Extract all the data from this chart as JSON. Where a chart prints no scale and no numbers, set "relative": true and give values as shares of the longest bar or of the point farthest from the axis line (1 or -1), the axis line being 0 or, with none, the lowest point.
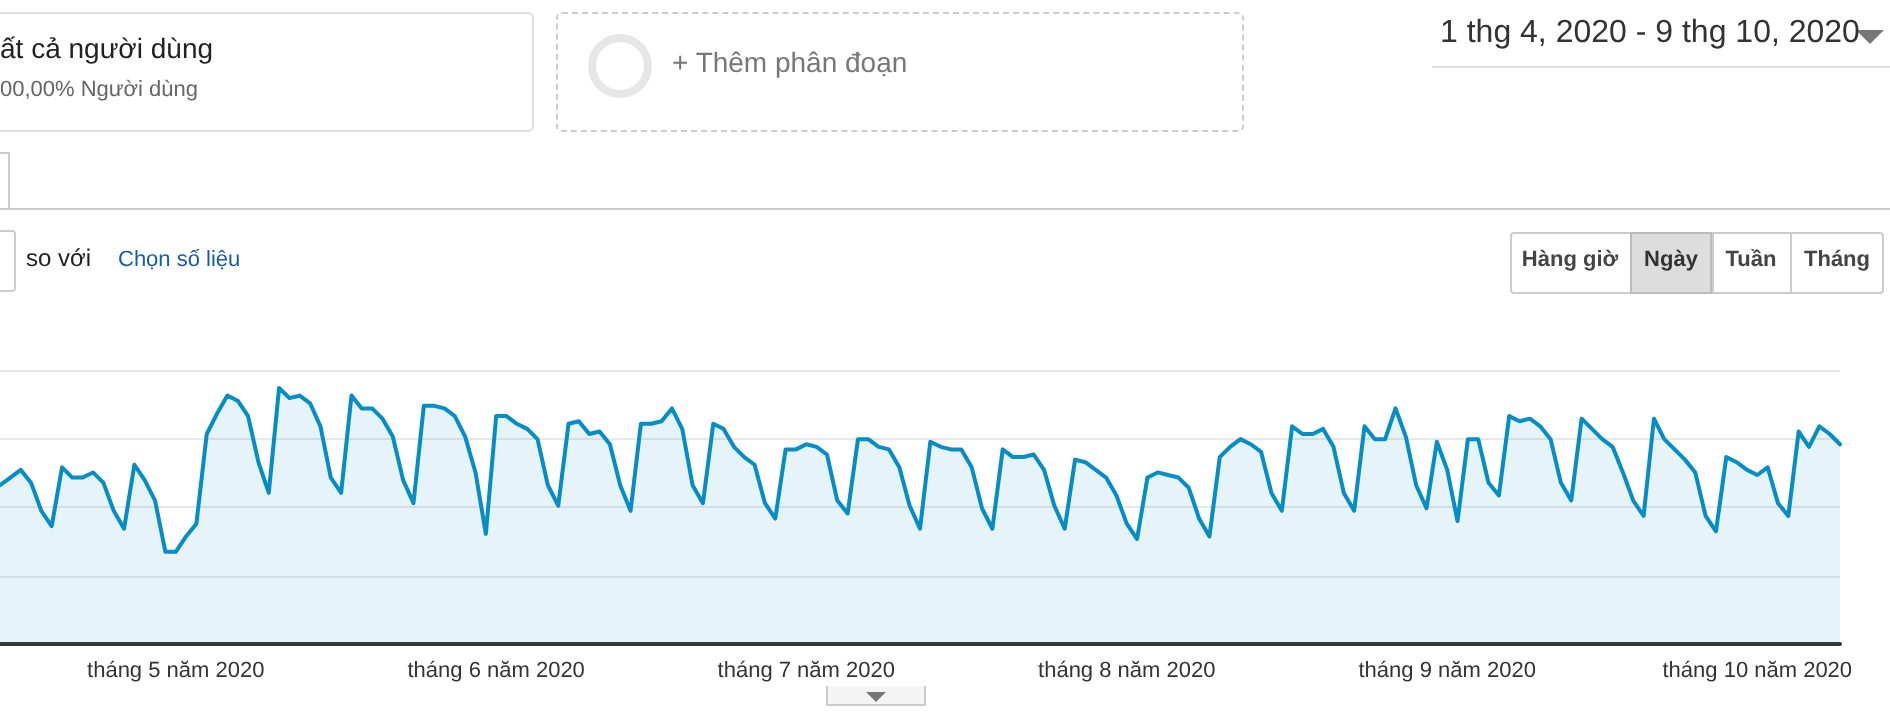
{
  "chart_data": {
    "type": "area",
    "relative": true,
    "color": "#058dc7",
    "marker": "none",
    "line_style": "solid",
    "grid": "y",
    "xlim": [
      "2020-04-14",
      "2020-10-09"
    ],
    "xticks": [
      {
        "value": "2020-05-01",
        "label": "tháng 5 năm 2020"
      },
      {
        "value": "2020-06-01",
        "label": "tháng 6 năm 2020"
      },
      {
        "value": "2020-07-01",
        "label": "tháng 7 năm 2020"
      },
      {
        "value": "2020-08-01",
        "label": "tháng 8 năm 2020"
      },
      {
        "value": "2020-09-01",
        "label": "tháng 9 năm 2020"
      },
      {
        "value": "2020-10-01",
        "label": "tháng 10 năm 2020"
      }
    ],
    "x": [
      "2020-04-14",
      "2020-04-15",
      "2020-04-16",
      "2020-04-17",
      "2020-04-18",
      "2020-04-19",
      "2020-04-20",
      "2020-04-21",
      "2020-04-22",
      "2020-04-23",
      "2020-04-24",
      "2020-04-25",
      "2020-04-26",
      "2020-04-27",
      "2020-04-28",
      "2020-04-29",
      "2020-04-30",
      "2020-05-01",
      "2020-05-02",
      "2020-05-03",
      "2020-05-04",
      "2020-05-05",
      "2020-05-06",
      "2020-05-07",
      "2020-05-08",
      "2020-05-09",
      "2020-05-10",
      "2020-05-11",
      "2020-05-12",
      "2020-05-13",
      "2020-05-14",
      "2020-05-15",
      "2020-05-16",
      "2020-05-17",
      "2020-05-18",
      "2020-05-19",
      "2020-05-20",
      "2020-05-21",
      "2020-05-22",
      "2020-05-23",
      "2020-05-24",
      "2020-05-25",
      "2020-05-26",
      "2020-05-27",
      "2020-05-28",
      "2020-05-29",
      "2020-05-30",
      "2020-05-31",
      "2020-06-01",
      "2020-06-02",
      "2020-06-03",
      "2020-06-04",
      "2020-06-05",
      "2020-06-06",
      "2020-06-07",
      "2020-06-08",
      "2020-06-09",
      "2020-06-10",
      "2020-06-11",
      "2020-06-12",
      "2020-06-13",
      "2020-06-14",
      "2020-06-15",
      "2020-06-16",
      "2020-06-17",
      "2020-06-18",
      "2020-06-19",
      "2020-06-20",
      "2020-06-21",
      "2020-06-22",
      "2020-06-23",
      "2020-06-24",
      "2020-06-25",
      "2020-06-26",
      "2020-06-27",
      "2020-06-28",
      "2020-06-29",
      "2020-06-30",
      "2020-07-01",
      "2020-07-02",
      "2020-07-03",
      "2020-07-04",
      "2020-07-05",
      "2020-07-06",
      "2020-07-07",
      "2020-07-08",
      "2020-07-09",
      "2020-07-10",
      "2020-07-11",
      "2020-07-12",
      "2020-07-13",
      "2020-07-14",
      "2020-07-15",
      "2020-07-16",
      "2020-07-17",
      "2020-07-18",
      "2020-07-19",
      "2020-07-20",
      "2020-07-21",
      "2020-07-22",
      "2020-07-23",
      "2020-07-24",
      "2020-07-25",
      "2020-07-26",
      "2020-07-27",
      "2020-07-28",
      "2020-07-29",
      "2020-07-30",
      "2020-07-31",
      "2020-08-01",
      "2020-08-02",
      "2020-08-03",
      "2020-08-04",
      "2020-08-05",
      "2020-08-06",
      "2020-08-07",
      "2020-08-08",
      "2020-08-09",
      "2020-08-10",
      "2020-08-11",
      "2020-08-12",
      "2020-08-13",
      "2020-08-14",
      "2020-08-15",
      "2020-08-16",
      "2020-08-17",
      "2020-08-18",
      "2020-08-19",
      "2020-08-20",
      "2020-08-21",
      "2020-08-22",
      "2020-08-23",
      "2020-08-24",
      "2020-08-25",
      "2020-08-26",
      "2020-08-27",
      "2020-08-28",
      "2020-08-29",
      "2020-08-30",
      "2020-08-31",
      "2020-09-01",
      "2020-09-02",
      "2020-09-03",
      "2020-09-04",
      "2020-09-05",
      "2020-09-06",
      "2020-09-07",
      "2020-09-08",
      "2020-09-09",
      "2020-09-10",
      "2020-09-11",
      "2020-09-12",
      "2020-09-13",
      "2020-09-14",
      "2020-09-15",
      "2020-09-16",
      "2020-09-17",
      "2020-09-18",
      "2020-09-19",
      "2020-09-20",
      "2020-09-21",
      "2020-09-22",
      "2020-09-23",
      "2020-09-24",
      "2020-09-25",
      "2020-09-26",
      "2020-09-27",
      "2020-09-28",
      "2020-09-29",
      "2020-09-30",
      "2020-10-01",
      "2020-10-02",
      "2020-10-03",
      "2020-10-04",
      "2020-10-05",
      "2020-10-06",
      "2020-10-07",
      "2020-10-08",
      "2020-10-09"
    ],
    "values": [
      0.62,
      0.65,
      0.68,
      0.63,
      0.52,
      0.46,
      0.69,
      0.65,
      0.65,
      0.67,
      0.63,
      0.52,
      0.45,
      0.7,
      0.64,
      0.56,
      0.36,
      0.36,
      0.42,
      0.47,
      0.82,
      0.9,
      0.97,
      0.95,
      0.89,
      0.71,
      0.59,
      1.0,
      0.96,
      0.97,
      0.94,
      0.85,
      0.65,
      0.59,
      0.97,
      0.92,
      0.92,
      0.88,
      0.81,
      0.64,
      0.55,
      0.93,
      0.93,
      0.92,
      0.89,
      0.81,
      0.67,
      0.43,
      0.89,
      0.89,
      0.86,
      0.84,
      0.8,
      0.62,
      0.54,
      0.86,
      0.87,
      0.82,
      0.83,
      0.78,
      0.62,
      0.52,
      0.86,
      0.86,
      0.87,
      0.92,
      0.84,
      0.62,
      0.55,
      0.86,
      0.84,
      0.77,
      0.73,
      0.7,
      0.55,
      0.49,
      0.76,
      0.76,
      0.78,
      0.77,
      0.74,
      0.56,
      0.51,
      0.8,
      0.8,
      0.77,
      0.76,
      0.69,
      0.54,
      0.45,
      0.79,
      0.77,
      0.76,
      0.76,
      0.69,
      0.53,
      0.45,
      0.76,
      0.73,
      0.73,
      0.74,
      0.68,
      0.54,
      0.45,
      0.72,
      0.71,
      0.68,
      0.65,
      0.58,
      0.47,
      0.41,
      0.65,
      0.67,
      0.66,
      0.65,
      0.61,
      0.49,
      0.42,
      0.73,
      0.77,
      0.8,
      0.78,
      0.75,
      0.59,
      0.52,
      0.85,
      0.82,
      0.82,
      0.84,
      0.77,
      0.59,
      0.52,
      0.85,
      0.8,
      0.8,
      0.92,
      0.81,
      0.62,
      0.53,
      0.79,
      0.68,
      0.48,
      0.8,
      0.8,
      0.63,
      0.58,
      0.89,
      0.87,
      0.88,
      0.85,
      0.8,
      0.63,
      0.56,
      0.88,
      0.84,
      0.8,
      0.77,
      0.67,
      0.56,
      0.5,
      0.88,
      0.8,
      0.76,
      0.72,
      0.67,
      0.5,
      0.44,
      0.73,
      0.71,
      0.68,
      0.66,
      0.69,
      0.55,
      0.5,
      0.83,
      0.77,
      0.85,
      0.82,
      0.78
    ],
    "annotations": [
      "ất cả người dùng",
      "00,00% Người dùng",
      "+ Thêm phân đoạn",
      "1 thg 4, 2020 - 9 thg 10, 2020",
      "so với",
      "Chọn số liệu",
      "Hàng giờ",
      "Ngày",
      "Tuần",
      "Tháng"
    ]
  }
}
